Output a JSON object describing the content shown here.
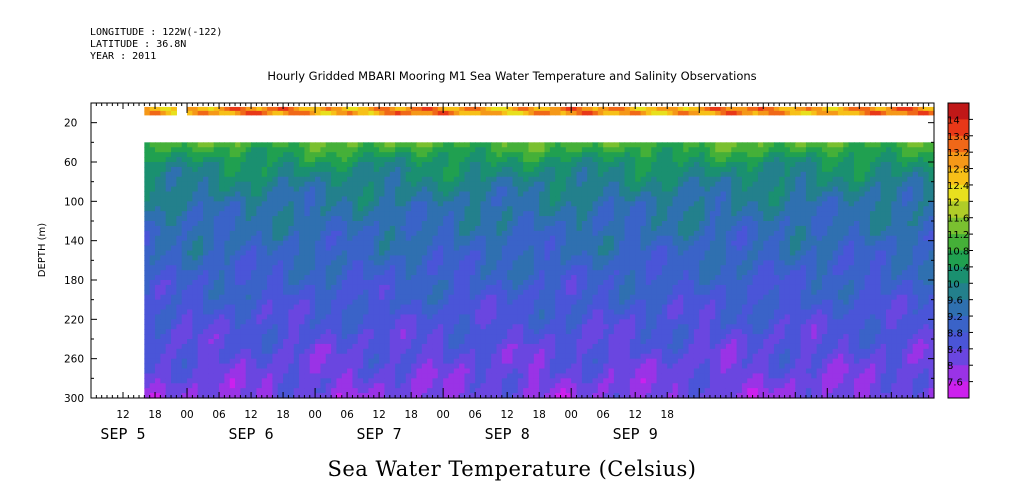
{
  "header": {
    "longitude": "LONGITUDE : 122W(-122)",
    "latitude": "LATITUDE : 36.8N",
    "year": "YEAR : 2011"
  },
  "chart_data": {
    "type": "heatmap",
    "title": "Hourly Gridded MBARI Mooring M1 Sea Water Temperature and Salinity Observations",
    "xlabel": "Sea Water Temperature (Celsius)",
    "ylabel": "DEPTH (m)",
    "ylim": [
      300,
      0
    ],
    "y_ticks": [
      20,
      60,
      100,
      140,
      180,
      220,
      260,
      300
    ],
    "x_hour_ticks": [
      "12",
      "18",
      "00",
      "06",
      "12",
      "18",
      "00",
      "06",
      "12",
      "18",
      "00",
      "06",
      "12",
      "18",
      "00",
      "06",
      "12",
      "18"
    ],
    "x_day_labels": [
      "SEP  5",
      "SEP  6",
      "SEP  7",
      "SEP  8",
      "SEP  9"
    ],
    "x_range_hours_from_sep5_00": [
      6,
      164
    ],
    "data_start_hour": 16,
    "surface_gap_hours": [
      22,
      24
    ],
    "depth_gap_m": [
      12,
      40
    ],
    "colorbar": {
      "levels": [
        7.6,
        8,
        8.4,
        8.8,
        9.2,
        9.6,
        10,
        10.4,
        10.8,
        11.2,
        11.6,
        12,
        12.4,
        12.8,
        13.2,
        13.6,
        14
      ],
      "labels": [
        "14",
        "13.6",
        "13.2",
        "12.8",
        "12.4",
        "12",
        "11.6",
        "11.2",
        "10.8",
        "10.4",
        "10",
        "9.6",
        "9.2",
        "8.8",
        "8.4",
        "8",
        "7.6"
      ],
      "colors": [
        "#cc20ee",
        "#9a33e6",
        "#6a46e0",
        "#4a55d8",
        "#3a63c8",
        "#2f70b0",
        "#23808c",
        "#1a9070",
        "#20a050",
        "#45b038",
        "#7ac030",
        "#b0cc28",
        "#e8e01e",
        "#f7c018",
        "#f59818",
        "#f06818",
        "#e83818",
        "#c01818"
      ]
    },
    "temperature_profile": [
      {
        "depth": 10,
        "temp": 13.0
      },
      {
        "depth": 40,
        "temp": 11.0
      },
      {
        "depth": 60,
        "temp": 10.2
      },
      {
        "depth": 80,
        "temp": 9.8
      },
      {
        "depth": 100,
        "temp": 9.5
      },
      {
        "depth": 140,
        "temp": 9.2
      },
      {
        "depth": 180,
        "temp": 8.9
      },
      {
        "depth": 220,
        "temp": 8.6
      },
      {
        "depth": 260,
        "temp": 8.3
      },
      {
        "depth": 300,
        "temp": 8.0
      }
    ]
  }
}
